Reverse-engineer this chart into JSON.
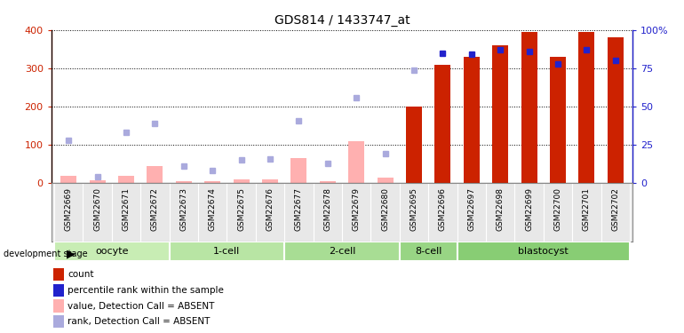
{
  "title": "GDS814 / 1433747_at",
  "samples": [
    "GSM22669",
    "GSM22670",
    "GSM22671",
    "GSM22672",
    "GSM22673",
    "GSM22674",
    "GSM22675",
    "GSM22676",
    "GSM22677",
    "GSM22678",
    "GSM22679",
    "GSM22680",
    "GSM22695",
    "GSM22696",
    "GSM22697",
    "GSM22698",
    "GSM22699",
    "GSM22700",
    "GSM22701",
    "GSM22702"
  ],
  "count_values": [
    null,
    null,
    null,
    null,
    null,
    null,
    null,
    null,
    null,
    null,
    null,
    null,
    200,
    310,
    330,
    360,
    395,
    330,
    395,
    380
  ],
  "rank_pct": [
    null,
    null,
    null,
    null,
    null,
    null,
    null,
    null,
    null,
    null,
    null,
    null,
    null,
    85,
    84,
    87,
    86,
    78,
    87,
    80
  ],
  "absent_value": [
    20,
    8,
    20,
    45,
    5,
    5,
    10,
    10,
    65,
    5,
    110,
    15,
    null,
    null,
    null,
    null,
    null,
    null,
    null,
    null
  ],
  "absent_rank_pct": [
    28,
    4,
    33,
    39,
    11,
    8,
    15,
    16,
    41,
    13,
    56,
    19,
    74,
    null,
    null,
    null,
    null,
    null,
    null,
    null
  ],
  "groups": [
    {
      "label": "oocyte",
      "start": 0,
      "end": 4,
      "color": "#d4f0c0"
    },
    {
      "label": "1-cell",
      "start": 4,
      "end": 8,
      "color": "#c4e8b0"
    },
    {
      "label": "2-cell",
      "start": 8,
      "end": 12,
      "color": "#b4e0a0"
    },
    {
      "label": "8-cell",
      "start": 12,
      "end": 14,
      "color": "#a4d890"
    },
    {
      "label": "blastocyst",
      "start": 14,
      "end": 20,
      "color": "#94d080"
    }
  ],
  "ylim_left": [
    0,
    400
  ],
  "ylim_right": [
    0,
    100
  ],
  "yticks_left": [
    0,
    100,
    200,
    300,
    400
  ],
  "yticks_right": [
    0,
    25,
    50,
    75,
    100
  ],
  "bar_color_count": "#cc2200",
  "bar_color_absent": "#ffb0b0",
  "dot_color_rank": "#2222cc",
  "dot_color_absent_rank": "#aaaadd",
  "legend_items": [
    {
      "label": "count",
      "color": "#cc2200"
    },
    {
      "label": "percentile rank within the sample",
      "color": "#2222cc"
    },
    {
      "label": "value, Detection Call = ABSENT",
      "color": "#ffb0b0"
    },
    {
      "label": "rank, Detection Call = ABSENT",
      "color": "#aaaadd"
    }
  ]
}
